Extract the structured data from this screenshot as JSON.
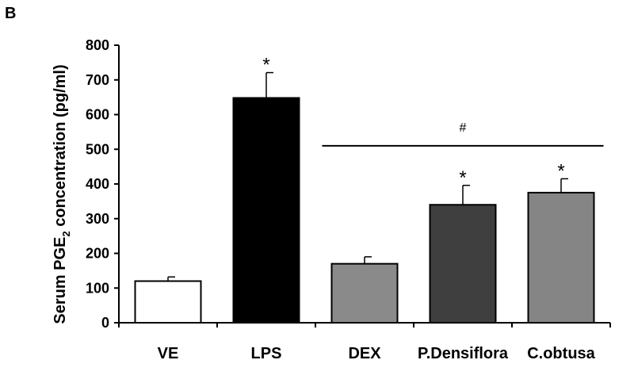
{
  "panel_label": "B",
  "chart_data": {
    "type": "bar",
    "categories": [
      "VE",
      "LPS",
      "DEX",
      "P.Densiflora",
      "C.obtusa"
    ],
    "values": [
      120,
      648,
      170,
      340,
      375
    ],
    "errors": [
      12,
      73,
      20,
      56,
      40
    ],
    "colors": [
      "#ffffff",
      "#000000",
      "#8a8a8a",
      "#3f3f3f",
      "#858585"
    ],
    "significance": [
      "",
      "*",
      "",
      "*",
      "*"
    ],
    "group_bracket": {
      "from_category": "DEX",
      "to_category": "C.obtusa",
      "label": "#",
      "y": 510
    },
    "ylabel_prefix": "Serum PGE",
    "ylabel_subscript": "2",
    "ylabel_suffix": " concentration (pg/ml)",
    "ylim": [
      0,
      800
    ],
    "yticks": [
      0,
      100,
      200,
      300,
      400,
      500,
      600,
      700,
      800
    ],
    "grid": false
  }
}
